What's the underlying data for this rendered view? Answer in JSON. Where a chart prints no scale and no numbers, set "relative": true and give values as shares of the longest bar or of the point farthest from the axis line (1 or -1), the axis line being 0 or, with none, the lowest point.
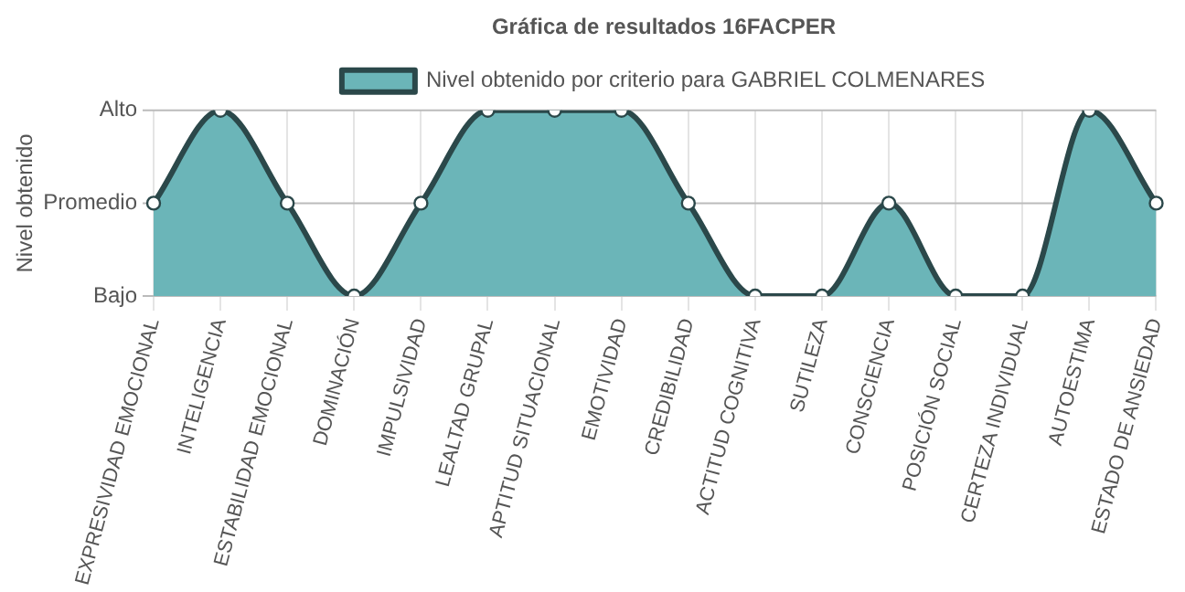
{
  "chart_data": {
    "type": "area",
    "title": "Gráfica de resultados 16FACPER",
    "ylabel": "Nivel obtenido",
    "relative": true,
    "categories": [
      "EXPRESIVIDAD EMOCIONAL",
      "INTELIGENCIA",
      "ESTABILIDAD EMOCIONAL",
      "DOMINACIÓN",
      "IMPULSIVIDAD",
      "LEALTAD GRUPAL",
      "APTITUD SITUACIONAL",
      "EMOTIVIDAD",
      "CREDIBILIDAD",
      "ACTITUD COGNITIVA",
      "SUTILEZA",
      "CONSCIENCIA",
      "POSICIÓN SOCIAL",
      "CERTEZA INDIVIDUAL",
      "AUTOESTIMA",
      "ESTADO DE ANSIEDAD"
    ],
    "series": [
      {
        "name": "Nivel obtenido por criterio para GABRIEL COLMENARES",
        "color": "#6bb5b8",
        "values": [
          0.5,
          1,
          0.5,
          0,
          0.5,
          1,
          1,
          1,
          0.5,
          0,
          0,
          0.5,
          0,
          0,
          1,
          0.5
        ]
      }
    ],
    "ref_lines": [
      {
        "axis": "y",
        "value": 0,
        "label": "Bajo",
        "color": "#bbbbbb"
      },
      {
        "axis": "y",
        "value": 0.5,
        "label": "Promedio",
        "color": "#bbbbbb"
      },
      {
        "axis": "y",
        "value": 1,
        "label": "Alto",
        "color": "#bbbbbb"
      }
    ],
    "grid": true,
    "legend": "top",
    "marker": "circle",
    "line_style": "solid"
  }
}
